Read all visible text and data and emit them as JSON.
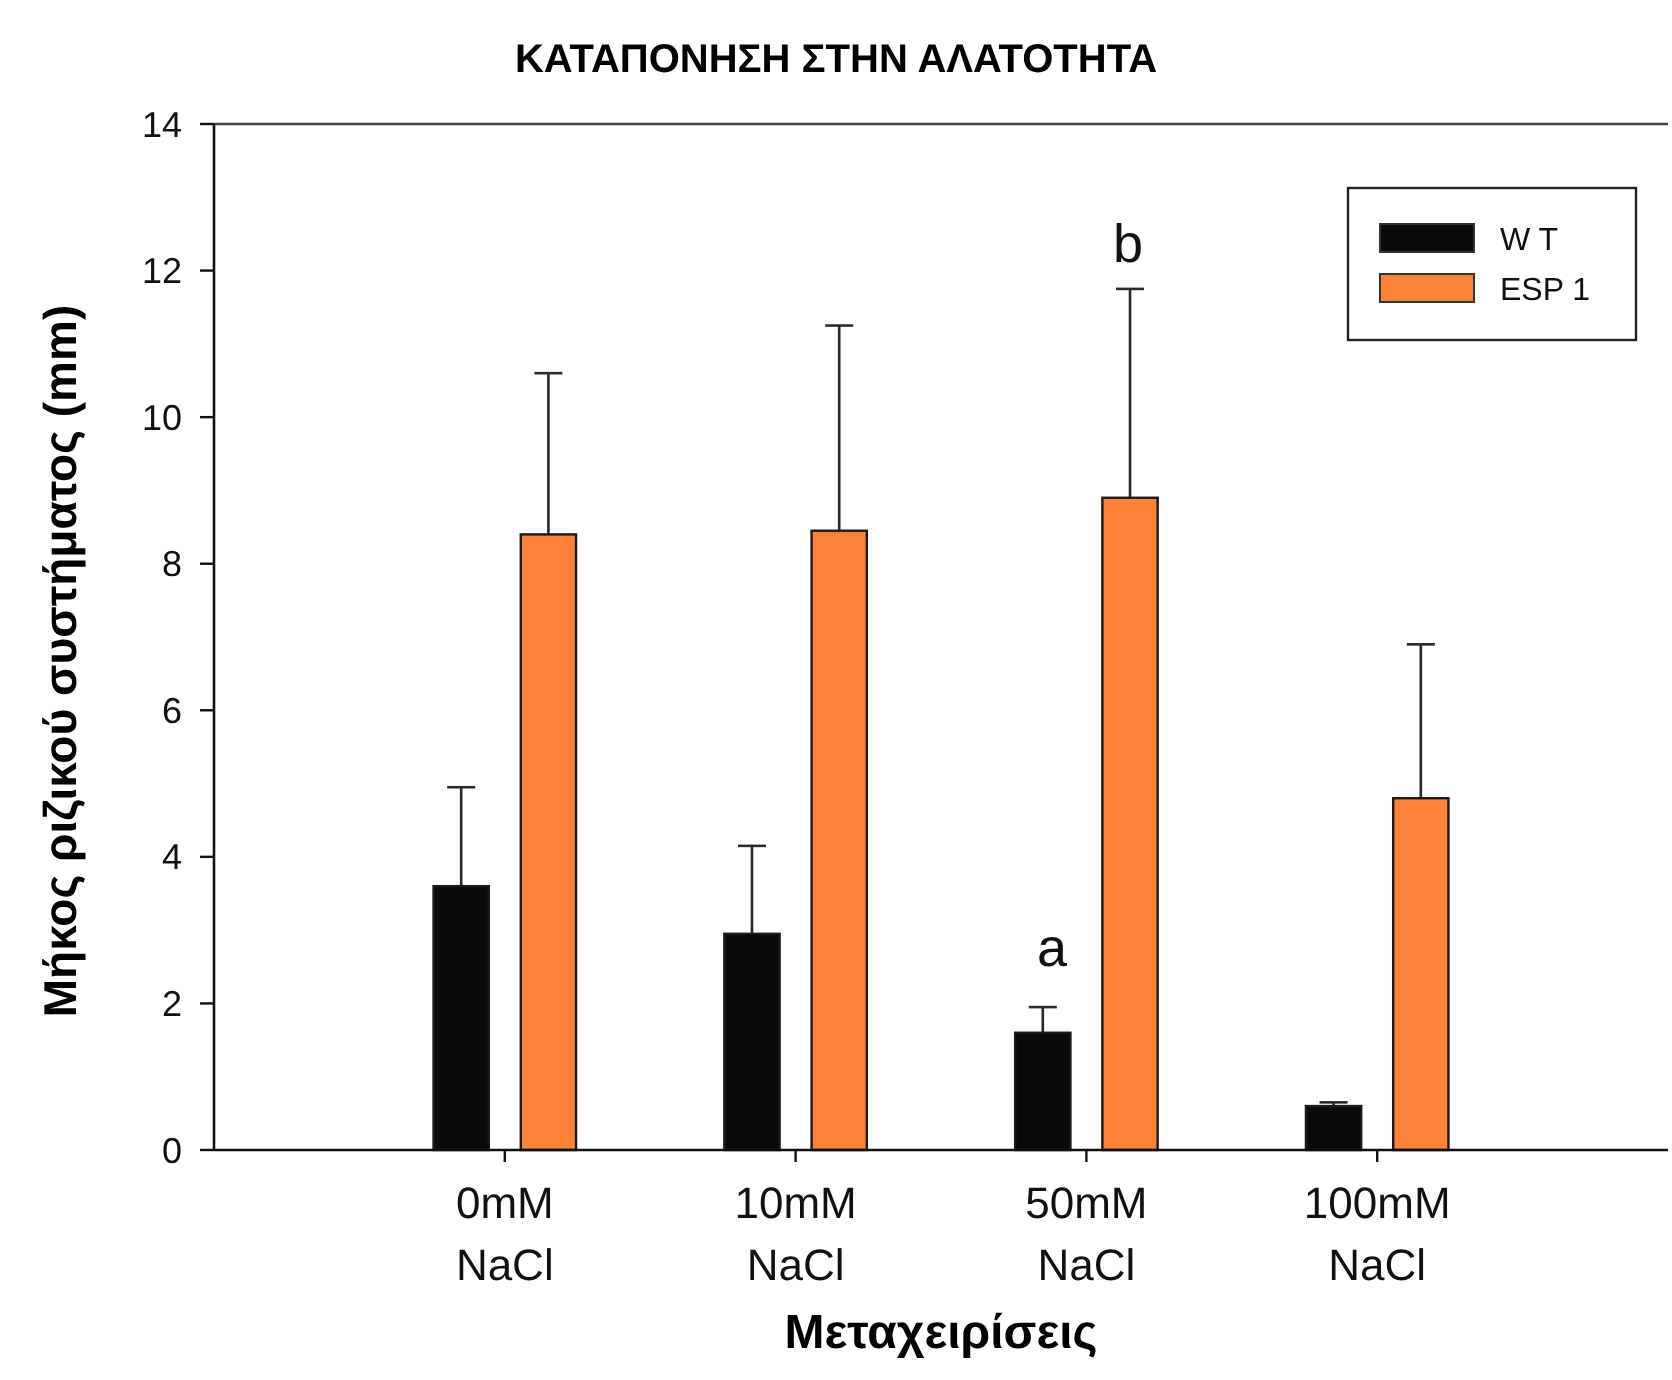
{
  "chart_data": {
    "type": "bar",
    "title": "ΚΑΤΑΠΟΝΗΣΗ ΣΤΗΝ ΑΛΑΤΟΤΗΤΑ",
    "xlabel": "Μεταχειρίσεις",
    "ylabel": "Μήκος ριζικού συστήματος (mm)",
    "categories": [
      "0mM NaCl",
      "10mM NaCl",
      "50mM NaCl",
      "100mM NaCl"
    ],
    "series": [
      {
        "name": "W T",
        "color": "#0a0a0a",
        "values": [
          3.6,
          2.95,
          1.6,
          0.6
        ],
        "errors": [
          [
            3.6,
            4.95
          ],
          [
            2.95,
            4.15
          ],
          [
            1.6,
            1.95
          ],
          [
            0.6,
            0.65
          ]
        ]
      },
      {
        "name": "ESP 1",
        "color": "#fe8338",
        "values": [
          8.4,
          8.45,
          8.9,
          4.8
        ],
        "errors": [
          [
            8.4,
            10.6
          ],
          [
            8.45,
            11.25
          ],
          [
            8.9,
            11.75
          ],
          [
            4.8,
            6.9
          ]
        ]
      }
    ],
    "ylim": [
      0,
      14
    ],
    "yticks": [
      0,
      2,
      4,
      6,
      8,
      10,
      12,
      14
    ],
    "legend": "top right",
    "annotations": [
      "a",
      "b"
    ]
  }
}
